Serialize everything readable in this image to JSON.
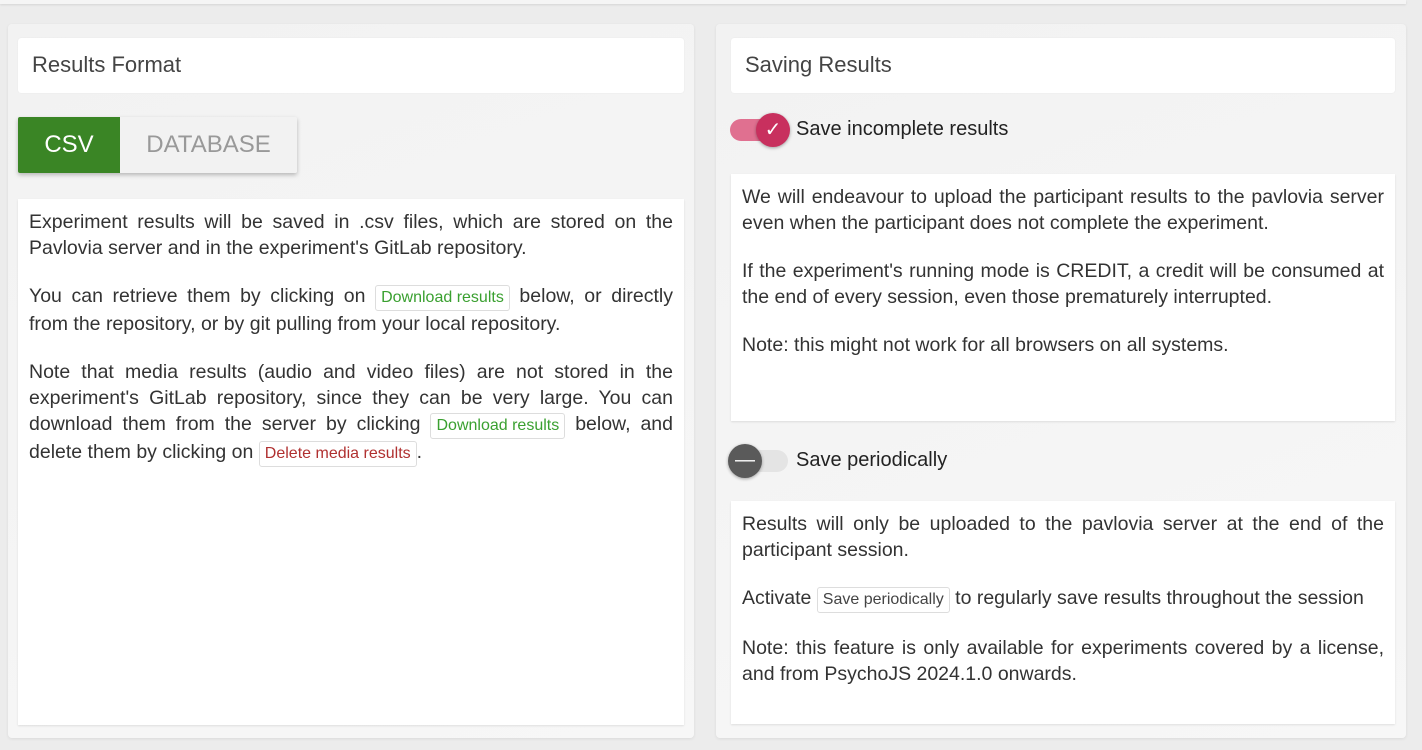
{
  "left": {
    "title": "Results Format",
    "formats": [
      {
        "label": "CSV",
        "selected": true
      },
      {
        "label": "DATABASE",
        "selected": false
      }
    ],
    "p1": "Experiment results will be saved in .csv files, which are stored on the Pavlovia server and in the experiment's GitLab repository.",
    "p2a": "You can retrieve them by clicking on ",
    "p2chip": "Download results",
    "p2b": " below, or directly from the repository, or by git pulling from your local repository.",
    "p3a": "Note that media results (audio and video files) are not stored in the experiment's GitLab repository, since they can be very large. You can download them from the server by clicking ",
    "p3chip1": "Download results",
    "p3b": " below, and delete them by clicking on ",
    "p3chip2": "Delete media results",
    "p3c": "."
  },
  "right": {
    "title": "Saving Results",
    "incomplete": {
      "label": "Save incomplete results",
      "on": true,
      "p1": "We will endeavour to upload the participant results to the pavlovia server even when the participant does not complete the experiment.",
      "p2": "If the experiment's running mode is CREDIT, a credit will be consumed at the end of every session, even those prematurely interrupted.",
      "p3": "Note: this might not work for all browsers on all systems."
    },
    "periodic": {
      "label": "Save periodically",
      "on": false,
      "p1": "Results will only be uploaded to the pavlovia server at the end of the participant session.",
      "p2a": "Activate ",
      "p2chip": "Save periodically",
      "p2b": " to regularly save results throughout the session",
      "p3": "Note: this feature is only available for experiments covered by a license, and from PsychoJS 2024.1.0 onwards."
    }
  },
  "colors": {
    "csv_active": "#3a8525",
    "toggle_on": "#c8305e",
    "toggle_off": "#5a5a5a"
  }
}
